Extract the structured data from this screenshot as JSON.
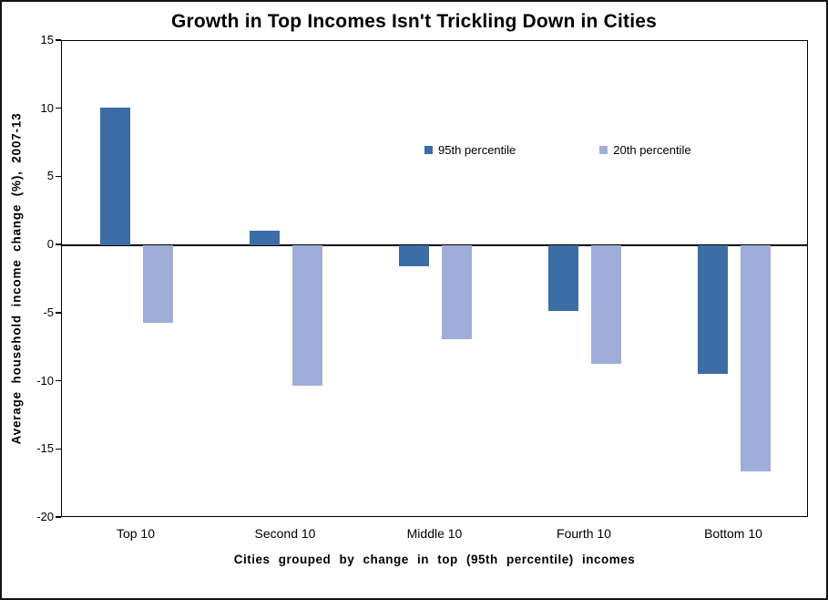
{
  "chart_data": {
    "type": "bar",
    "title": "Growth in Top Incomes Isn't Trickling Down in Cities",
    "xlabel": "Cities grouped by change in top (95th percentile) incomes",
    "ylabel": "Average household income change (%), 2007-13",
    "categories": [
      "Top 10",
      "Second 10",
      "Middle 10",
      "Fourth 10",
      "Bottom 10"
    ],
    "series": [
      {
        "name": "95th percentile",
        "color": "#3C6DA5",
        "values": [
          10.1,
          1.1,
          -1.5,
          -4.8,
          -9.4
        ]
      },
      {
        "name": "20th percentile",
        "color": "#9FAED9",
        "values": [
          -5.7,
          -10.3,
          -6.9,
          -8.7,
          -16.6
        ]
      }
    ],
    "ylim": [
      -20,
      15
    ],
    "ytick_step": 5,
    "yticks": [
      15,
      10,
      5,
      0,
      -5,
      -10,
      -15,
      -20
    ],
    "grid": false,
    "legend_position": "inside-top-center",
    "background_color": "#ffffff",
    "border_color": "#141414"
  }
}
